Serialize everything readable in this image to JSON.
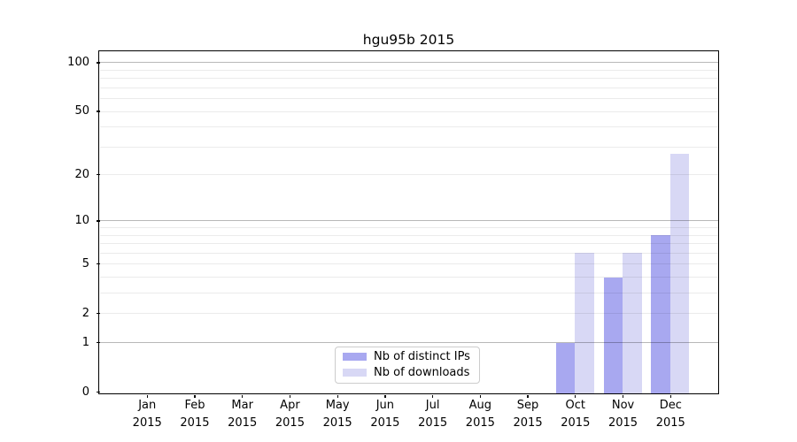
{
  "chart_data": {
    "type": "bar",
    "title": "hgu95b 2015",
    "x": {
      "months": [
        "Jan",
        "Feb",
        "Mar",
        "Apr",
        "May",
        "Jun",
        "Jul",
        "Aug",
        "Sep",
        "Oct",
        "Nov",
        "Dec"
      ],
      "year": "2015"
    },
    "y_axis": {
      "scale": "log1p",
      "tick_values": [
        0,
        1,
        2,
        5,
        10,
        20,
        50,
        100
      ],
      "tick_labels": [
        "0",
        "1",
        "2",
        "5",
        "10",
        "20",
        "50",
        "100"
      ],
      "major_gridlines": [
        1,
        10,
        100
      ],
      "minor_gridlines": [
        2,
        3,
        4,
        5,
        6,
        7,
        8,
        9,
        20,
        30,
        40,
        50,
        60,
        70,
        80,
        90
      ],
      "ylim": [
        0,
        115
      ],
      "grid": true
    },
    "categories": [
      "Jan 2015",
      "Feb 2015",
      "Mar 2015",
      "Apr 2015",
      "May 2015",
      "Jun 2015",
      "Jul 2015",
      "Aug 2015",
      "Sep 2015",
      "Oct 2015",
      "Nov 2015",
      "Dec 2015"
    ],
    "series": [
      {
        "name": "Nb of distinct IPs",
        "color": "#a8a8f0",
        "values": [
          0,
          0,
          0,
          0,
          0,
          0,
          0,
          0,
          0,
          1,
          4,
          8
        ]
      },
      {
        "name": "Nb of downloads",
        "color": "#d8d8f5",
        "values": [
          0,
          0,
          0,
          0,
          0,
          0,
          0,
          0,
          0,
          6,
          6,
          27
        ]
      }
    ],
    "legend": {
      "position": "bottom-center-inside",
      "entries": [
        "Nb of distinct IPs",
        "Nb of downloads"
      ]
    }
  },
  "colors": {
    "background": "#ffffff",
    "axis": "#000000",
    "major_grid": "#b3b3b3",
    "minor_grid": "#ebebeb",
    "legend_border": "#cccccc",
    "bar_ips": "#a8a8f0",
    "bar_downloads": "#d8d8f5"
  }
}
